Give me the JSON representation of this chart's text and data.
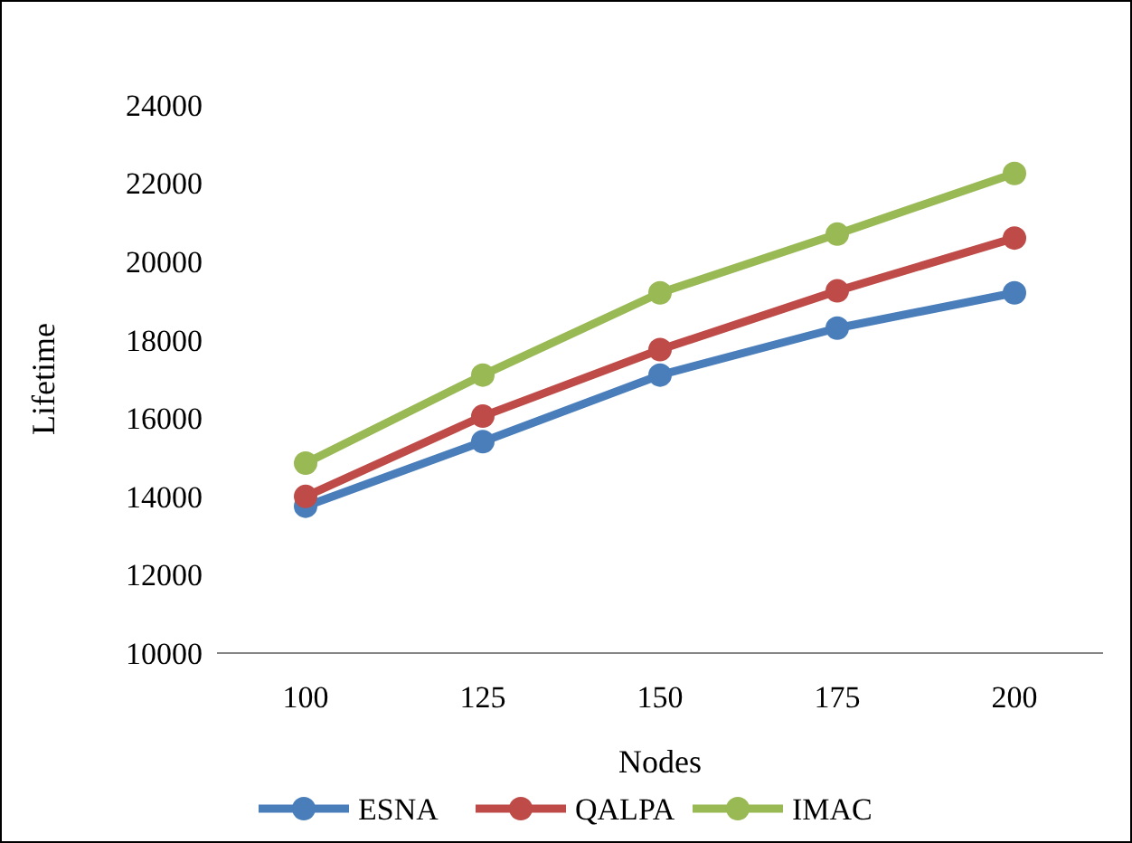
{
  "chart_data": {
    "type": "line",
    "xlabel": "Nodes",
    "ylabel": "Lifetime",
    "categories": [
      "100",
      "125",
      "150",
      "175",
      "200"
    ],
    "series": [
      {
        "name": "ESNA",
        "color": "#4a7ebb",
        "values": [
          13750,
          15400,
          17100,
          18300,
          19200
        ]
      },
      {
        "name": "QALPA",
        "color": "#be4b48",
        "values": [
          14000,
          16050,
          17750,
          19250,
          20600
        ]
      },
      {
        "name": "IMAC",
        "color": "#98b954",
        "values": [
          14850,
          17100,
          19200,
          20700,
          22250
        ]
      }
    ],
    "ylim": [
      10000,
      24000
    ],
    "yticks": [
      10000,
      12000,
      14000,
      16000,
      18000,
      20000,
      22000,
      24000
    ],
    "grid": false,
    "legend": "bottom",
    "marker": "circle",
    "line_style": "solid"
  }
}
